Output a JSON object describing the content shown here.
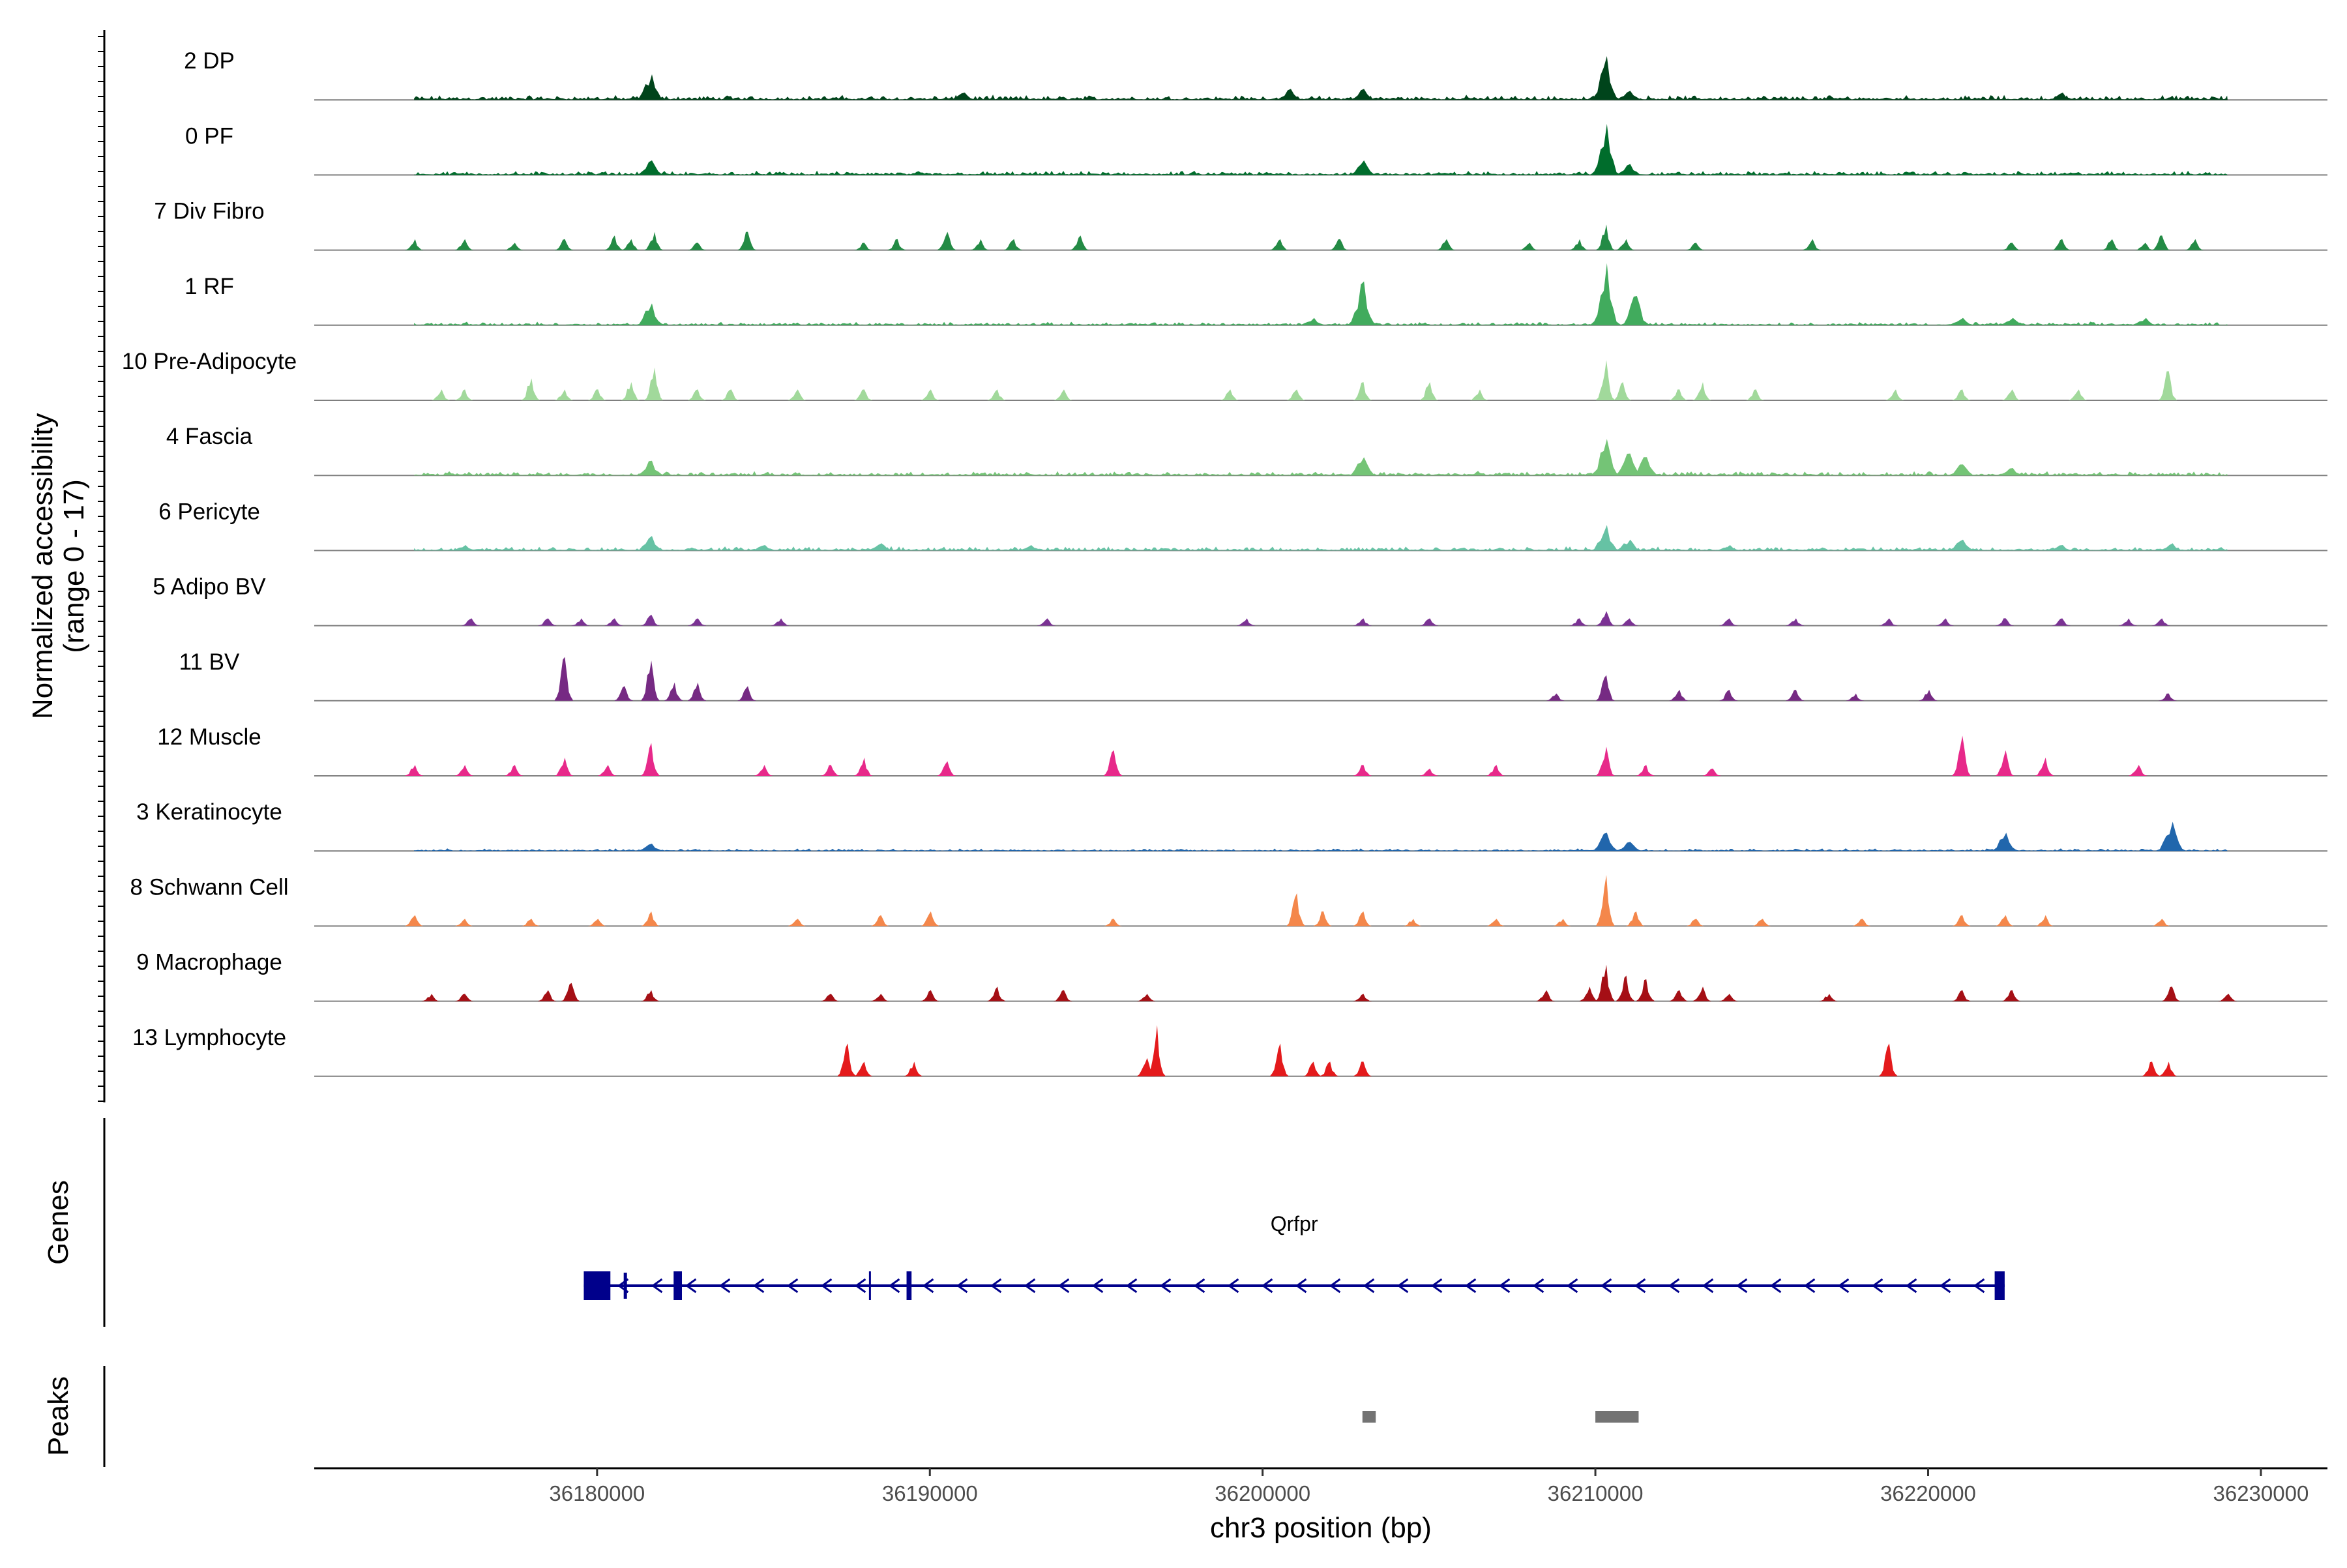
{
  "chart_data": {
    "type": "area",
    "title": "",
    "ylabel": "Normalized accessibility",
    "ylabel_range": "(range 0 - 17)",
    "ylim": [
      0,
      17
    ],
    "xlabel": "chr3 position (bp)",
    "xlim": [
      36171500,
      36232000
    ],
    "x_ticks": [
      36180000,
      36190000,
      36200000,
      36210000,
      36220000,
      36230000
    ],
    "x_tick_labels": [
      "36180000",
      "36190000",
      "36200000",
      "36210000",
      "36220000",
      "36230000"
    ],
    "tracks": [
      {
        "name": "2 DP",
        "color": "#00441b",
        "style": "dense",
        "range": [
          36174500,
          36229000
        ],
        "background": 0.6,
        "peaks": [
          [
            36181600,
            7
          ],
          [
            36191000,
            2
          ],
          [
            36200800,
            3
          ],
          [
            36203000,
            3
          ],
          [
            36210300,
            12
          ],
          [
            36211000,
            2.5
          ],
          [
            36224000,
            2
          ]
        ]
      },
      {
        "name": "0 PF",
        "color": "#006d2c",
        "style": "dense",
        "range": [
          36174500,
          36229000
        ],
        "background": 0.5,
        "peaks": [
          [
            36181600,
            4
          ],
          [
            36203000,
            4
          ],
          [
            36210300,
            14
          ],
          [
            36211000,
            3
          ]
        ]
      },
      {
        "name": "7 Div Fibro",
        "color": "#238b45",
        "style": "sparse",
        "range": [
          36174500,
          36228000
        ],
        "peaks": [
          [
            36174500,
            3
          ],
          [
            36176000,
            3
          ],
          [
            36177500,
            2
          ],
          [
            36179000,
            3
          ],
          [
            36180500,
            4
          ],
          [
            36181000,
            3
          ],
          [
            36181700,
            5
          ],
          [
            36183000,
            2
          ],
          [
            36184500,
            5
          ],
          [
            36188000,
            2
          ],
          [
            36189000,
            3
          ],
          [
            36190500,
            5
          ],
          [
            36191500,
            3
          ],
          [
            36192500,
            3
          ],
          [
            36194500,
            4
          ],
          [
            36200500,
            3
          ],
          [
            36202300,
            3
          ],
          [
            36205500,
            3
          ],
          [
            36208000,
            2
          ],
          [
            36209500,
            3
          ],
          [
            36210300,
            7
          ],
          [
            36210900,
            3
          ],
          [
            36213000,
            2
          ],
          [
            36216500,
            3
          ],
          [
            36222500,
            2
          ],
          [
            36224000,
            3
          ],
          [
            36225500,
            3
          ],
          [
            36226500,
            2
          ],
          [
            36227000,
            4
          ],
          [
            36228000,
            3
          ]
        ]
      },
      {
        "name": "1 RF",
        "color": "#41ab5d",
        "style": "dense",
        "range": [
          36174500,
          36229000
        ],
        "background": 0.4,
        "peaks": [
          [
            36181600,
            6
          ],
          [
            36201500,
            2
          ],
          [
            36203000,
            12
          ],
          [
            36210300,
            17
          ],
          [
            36211200,
            8
          ],
          [
            36221000,
            2
          ],
          [
            36222500,
            2
          ],
          [
            36226500,
            2
          ]
        ]
      },
      {
        "name": "10 Pre-Adipocyte",
        "color": "#a1d99b",
        "style": "sparse",
        "range": [
          36175000,
          36228000
        ],
        "peaks": [
          [
            36175300,
            3
          ],
          [
            36176000,
            3
          ],
          [
            36178000,
            6
          ],
          [
            36179000,
            3
          ],
          [
            36180000,
            3
          ],
          [
            36181000,
            5
          ],
          [
            36181700,
            9
          ],
          [
            36183000,
            3
          ],
          [
            36184000,
            3
          ],
          [
            36186000,
            3
          ],
          [
            36188000,
            3
          ],
          [
            36190000,
            3
          ],
          [
            36192000,
            3
          ],
          [
            36194000,
            3
          ],
          [
            36199000,
            3
          ],
          [
            36201000,
            3
          ],
          [
            36203000,
            5
          ],
          [
            36205000,
            5
          ],
          [
            36206500,
            3
          ],
          [
            36210300,
            11
          ],
          [
            36210800,
            5
          ],
          [
            36212500,
            3
          ],
          [
            36213200,
            5
          ],
          [
            36214800,
            3
          ],
          [
            36219000,
            3
          ],
          [
            36221000,
            3
          ],
          [
            36222500,
            3
          ],
          [
            36224500,
            3
          ],
          [
            36227200,
            8
          ]
        ]
      },
      {
        "name": "4 Fascia",
        "color": "#74c476",
        "style": "dense",
        "range": [
          36174500,
          36229000
        ],
        "background": 0.5,
        "peaks": [
          [
            36181600,
            4
          ],
          [
            36203000,
            5
          ],
          [
            36210300,
            10
          ],
          [
            36211000,
            6
          ],
          [
            36211500,
            5
          ],
          [
            36221000,
            3
          ],
          [
            36222500,
            2
          ]
        ]
      },
      {
        "name": "6 Pericyte",
        "color": "#66c2a4",
        "style": "dense",
        "range": [
          36174500,
          36229000
        ],
        "background": 0.5,
        "peaks": [
          [
            36176000,
            1.5
          ],
          [
            36181600,
            4
          ],
          [
            36185000,
            1.5
          ],
          [
            36188500,
            2
          ],
          [
            36193000,
            1.5
          ],
          [
            36210300,
            7
          ],
          [
            36211000,
            3
          ],
          [
            36214000,
            1.5
          ],
          [
            36221000,
            3
          ],
          [
            36224000,
            1.5
          ],
          [
            36227300,
            2
          ]
        ]
      },
      {
        "name": "5 Adipo BV",
        "color": "#7b3294",
        "style": "sparse",
        "range": [
          36176000,
          36229000
        ],
        "peaks": [
          [
            36176200,
            2
          ],
          [
            36178500,
            2
          ],
          [
            36179500,
            2
          ],
          [
            36180500,
            2
          ],
          [
            36181600,
            3
          ],
          [
            36183000,
            2
          ],
          [
            36185500,
            2
          ],
          [
            36193500,
            2
          ],
          [
            36199500,
            2
          ],
          [
            36203000,
            2
          ],
          [
            36205000,
            2
          ],
          [
            36209500,
            2
          ],
          [
            36210300,
            4
          ],
          [
            36211000,
            2
          ],
          [
            36214000,
            2
          ],
          [
            36216000,
            2
          ],
          [
            36218800,
            2
          ],
          [
            36220500,
            2
          ],
          [
            36222300,
            2
          ],
          [
            36224000,
            2
          ],
          [
            36226000,
            2
          ],
          [
            36227000,
            2
          ]
        ]
      },
      {
        "name": "11 BV",
        "color": "#762a83",
        "style": "sparse",
        "range": [
          36179000,
          36228000
        ],
        "peaks": [
          [
            36179000,
            12
          ],
          [
            36180800,
            4
          ],
          [
            36181600,
            11
          ],
          [
            36182300,
            5
          ],
          [
            36183000,
            5
          ],
          [
            36184500,
            4
          ],
          [
            36208800,
            2
          ],
          [
            36210300,
            7
          ],
          [
            36212500,
            3
          ],
          [
            36214000,
            3
          ],
          [
            36216000,
            3
          ],
          [
            36217800,
            2
          ],
          [
            36220000,
            3
          ],
          [
            36227200,
            2
          ]
        ]
      },
      {
        "name": "12 Muscle",
        "color": "#e7298a",
        "style": "sparse",
        "range": [
          36174500,
          36226500
        ],
        "peaks": [
          [
            36174500,
            3
          ],
          [
            36176000,
            3
          ],
          [
            36177500,
            3
          ],
          [
            36179000,
            5
          ],
          [
            36180300,
            3
          ],
          [
            36181600,
            9
          ],
          [
            36185000,
            3
          ],
          [
            36187000,
            3
          ],
          [
            36188000,
            5
          ],
          [
            36190500,
            4
          ],
          [
            36195500,
            7
          ],
          [
            36203000,
            3
          ],
          [
            36205000,
            2
          ],
          [
            36207000,
            3
          ],
          [
            36210300,
            8
          ],
          [
            36211500,
            3
          ],
          [
            36213500,
            2
          ],
          [
            36221000,
            11
          ],
          [
            36222300,
            7
          ],
          [
            36223500,
            5
          ],
          [
            36226300,
            3
          ]
        ]
      },
      {
        "name": "3 Keratinocyte",
        "color": "#2166ac",
        "style": "dense",
        "range": [
          36174500,
          36229000
        ],
        "background": 0.3,
        "peaks": [
          [
            36181600,
            2
          ],
          [
            36210300,
            5
          ],
          [
            36211000,
            2.5
          ],
          [
            36222300,
            5
          ],
          [
            36227300,
            8
          ]
        ]
      },
      {
        "name": "8 Schwann Cell",
        "color": "#f4874b",
        "style": "sparse",
        "range": [
          36174500,
          36227500
        ],
        "peaks": [
          [
            36174500,
            3
          ],
          [
            36176000,
            2
          ],
          [
            36178000,
            2
          ],
          [
            36180000,
            2
          ],
          [
            36181600,
            4
          ],
          [
            36186000,
            2
          ],
          [
            36188500,
            3
          ],
          [
            36190000,
            4
          ],
          [
            36195500,
            2
          ],
          [
            36201000,
            9
          ],
          [
            36201800,
            4
          ],
          [
            36203000,
            4
          ],
          [
            36204500,
            2
          ],
          [
            36207000,
            2
          ],
          [
            36209000,
            2
          ],
          [
            36210300,
            14
          ],
          [
            36211200,
            4
          ],
          [
            36213000,
            2
          ],
          [
            36215000,
            2
          ],
          [
            36218000,
            2
          ],
          [
            36221000,
            3
          ],
          [
            36222300,
            3
          ],
          [
            36223500,
            3
          ],
          [
            36227000,
            2
          ]
        ]
      },
      {
        "name": "9 Macrophage",
        "color": "#a50f15",
        "style": "sparse",
        "range": [
          36175000,
          36229000
        ],
        "peaks": [
          [
            36175000,
            2
          ],
          [
            36176000,
            2
          ],
          [
            36178500,
            3
          ],
          [
            36179200,
            5
          ],
          [
            36181600,
            3
          ],
          [
            36187000,
            2
          ],
          [
            36188500,
            2
          ],
          [
            36190000,
            3
          ],
          [
            36192000,
            4
          ],
          [
            36194000,
            3
          ],
          [
            36196500,
            2
          ],
          [
            36203000,
            2
          ],
          [
            36208500,
            3
          ],
          [
            36209800,
            4
          ],
          [
            36210300,
            10
          ],
          [
            36210900,
            7
          ],
          [
            36211500,
            6
          ],
          [
            36212500,
            3
          ],
          [
            36213200,
            4
          ],
          [
            36214000,
            2
          ],
          [
            36217000,
            2
          ],
          [
            36221000,
            3
          ],
          [
            36222500,
            3
          ],
          [
            36227300,
            4
          ],
          [
            36229000,
            2
          ]
        ]
      },
      {
        "name": "13 Lymphocyte",
        "color": "#e41a1c",
        "style": "sparse",
        "range": [
          36187000,
          36228000
        ],
        "peaks": [
          [
            36187500,
            9
          ],
          [
            36188000,
            4
          ],
          [
            36189500,
            4
          ],
          [
            36196500,
            5
          ],
          [
            36196800,
            14
          ],
          [
            36200500,
            9
          ],
          [
            36201500,
            4
          ],
          [
            36202000,
            4
          ],
          [
            36203000,
            4
          ],
          [
            36218800,
            9
          ],
          [
            36226700,
            4
          ],
          [
            36227200,
            4
          ]
        ]
      }
    ],
    "genes": [
      {
        "name": "Qrfpr",
        "strand": "-",
        "start": 36179600,
        "end": 36222300,
        "color": "#00008b",
        "exons": [
          [
            36179600,
            36180400
          ],
          [
            36180800,
            36180850
          ],
          [
            36182300,
            36182550
          ],
          [
            36189300,
            36189450
          ],
          [
            36222000,
            36222300
          ]
        ]
      }
    ],
    "peaks": [
      [
        36203000,
        36203400
      ],
      [
        36210000,
        36211300
      ]
    ],
    "panel_labels": {
      "genes": "Genes",
      "peaks": "Peaks"
    }
  }
}
